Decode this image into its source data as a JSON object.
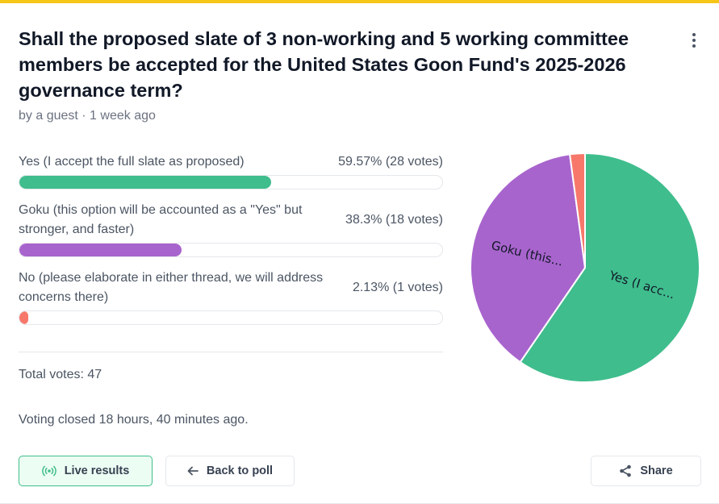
{
  "poll": {
    "title": "Shall the proposed slate of 3 non-working and 5 working committee members be accepted for the United States Goon Fund's 2025-2026 governance term?",
    "meta": "by a guest · 1 week ago",
    "options": [
      {
        "label": "Yes (I accept the full slate as proposed)",
        "stat": "59.57% (28 votes)",
        "percent": 59.57,
        "votes": 28,
        "color": "#3fbd8d",
        "pie_label": "Yes (I acc..."
      },
      {
        "label": "Goku (this option will be accounted as a \"Yes\" but stronger, and faster)",
        "stat": "38.3% (18 votes)",
        "percent": 38.3,
        "votes": 18,
        "color": "#a864cd",
        "pie_label": "Goku (this..."
      },
      {
        "label": "No (please elaborate in either thread, we will address concerns there)",
        "stat": "2.13% (1 votes)",
        "percent": 2.13,
        "votes": 1,
        "color": "#f7786b",
        "pie_label": ""
      }
    ],
    "total": "Total votes: 47",
    "closed": "Voting closed 18 hours, 40 minutes ago."
  },
  "actions": {
    "live": "Live results",
    "back": "Back to poll",
    "share": "Share"
  },
  "icons": {
    "menu": "vertical-dots-icon",
    "live": "broadcast-icon",
    "back": "arrow-left-icon",
    "share": "share-icon"
  },
  "chart_data": {
    "type": "pie",
    "categories": [
      "Yes (I acc...",
      "Goku (this...",
      ""
    ],
    "values": [
      59.57,
      38.3,
      2.13
    ],
    "colors": [
      "#3fbd8d",
      "#a864cd",
      "#f7786b"
    ]
  }
}
